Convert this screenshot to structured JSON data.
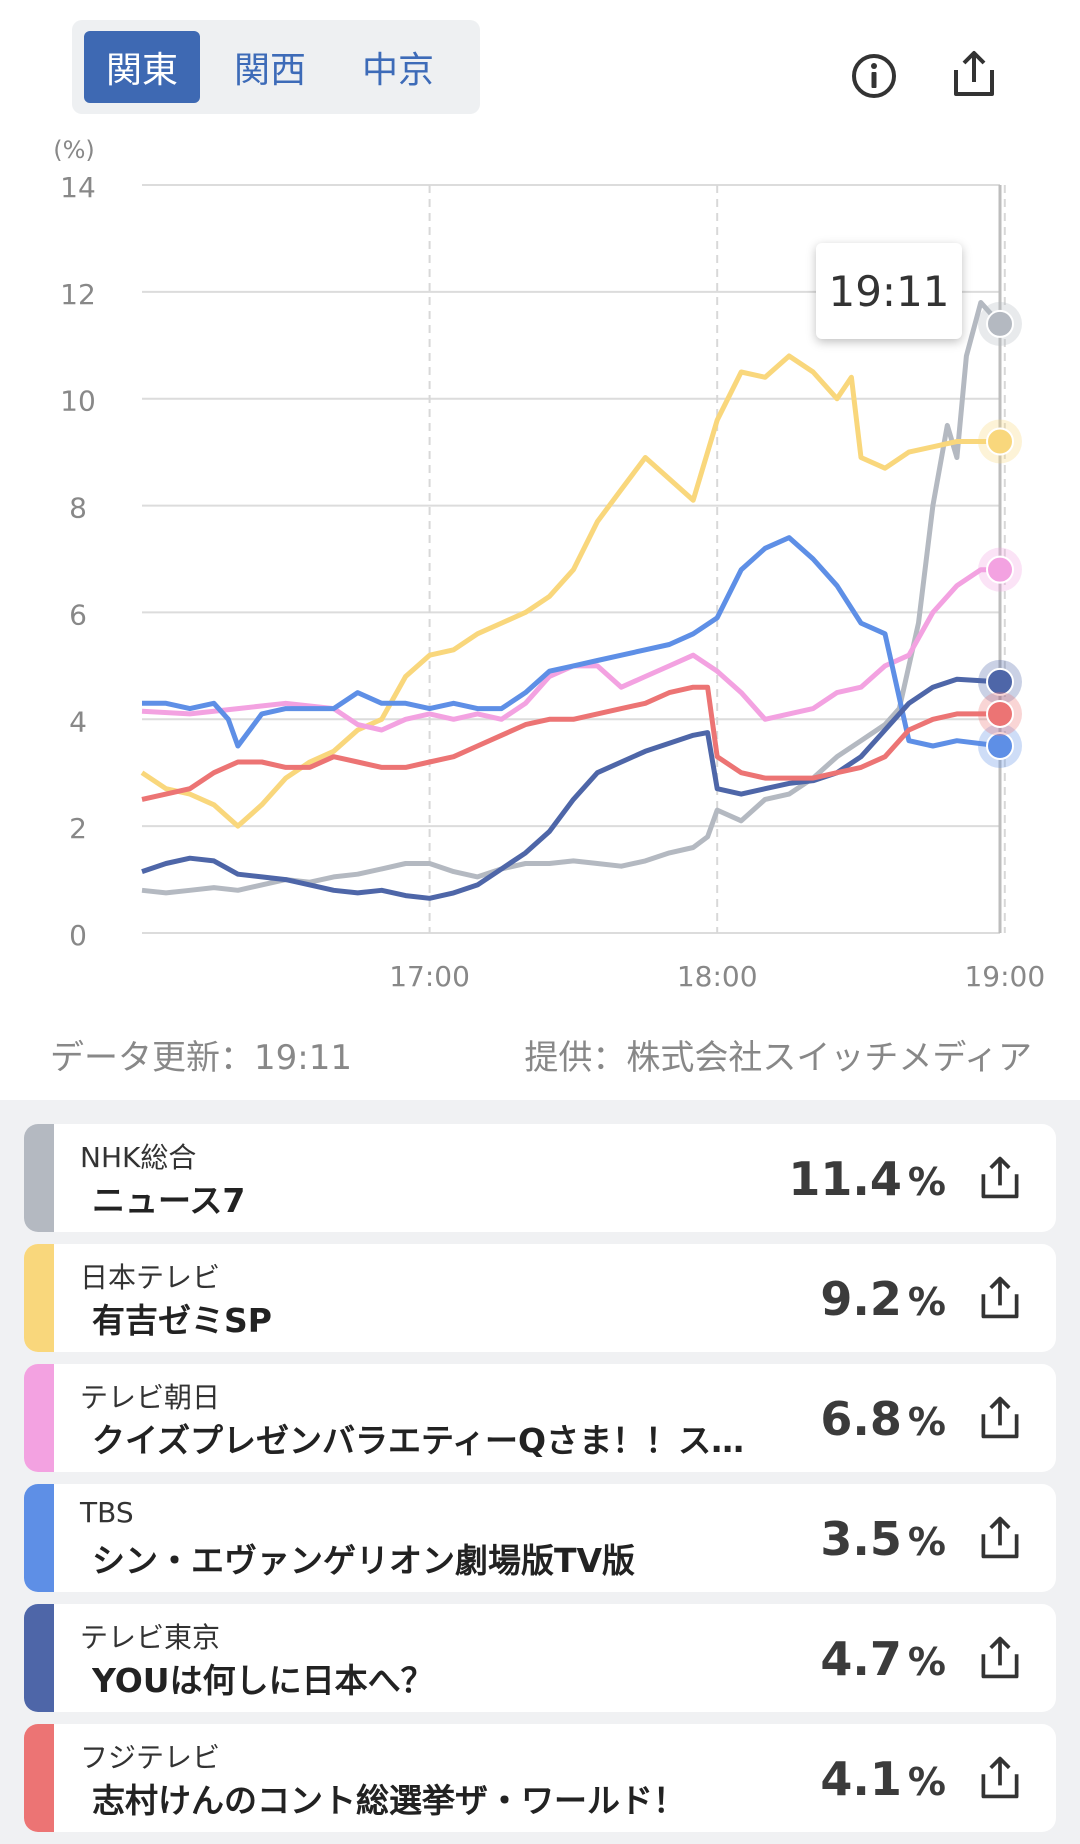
{
  "region_tabs": [
    {
      "label": "関東",
      "active": true
    },
    {
      "label": "関西",
      "active": false
    },
    {
      "label": "中京",
      "active": false
    }
  ],
  "icons": {
    "info": "info-circle-icon",
    "share": "share-upload-icon"
  },
  "tooltip_time": "19:11",
  "chart_data": {
    "type": "line",
    "unit_label": "(%)",
    "y_ticks": [
      "0",
      "2",
      "4",
      "6",
      "8",
      "10",
      "12",
      "14"
    ],
    "x_ticks": [
      "17:00",
      "18:00",
      "19:00"
    ],
    "ylim": [
      0,
      14
    ],
    "xlim_minutes": [
      0,
      179
    ],
    "grid": true,
    "series": [
      {
        "name": "NHK総合",
        "color": "#b4b9c1",
        "points": [
          [
            0,
            0.8
          ],
          [
            5,
            0.75
          ],
          [
            10,
            0.8
          ],
          [
            15,
            0.85
          ],
          [
            20,
            0.8
          ],
          [
            25,
            0.9
          ],
          [
            30,
            1.0
          ],
          [
            35,
            0.95
          ],
          [
            40,
            1.05
          ],
          [
            45,
            1.1
          ],
          [
            50,
            1.2
          ],
          [
            55,
            1.3
          ],
          [
            60,
            1.3
          ],
          [
            65,
            1.15
          ],
          [
            70,
            1.05
          ],
          [
            75,
            1.2
          ],
          [
            80,
            1.3
          ],
          [
            85,
            1.3
          ],
          [
            90,
            1.35
          ],
          [
            95,
            1.3
          ],
          [
            100,
            1.25
          ],
          [
            105,
            1.35
          ],
          [
            110,
            1.5
          ],
          [
            115,
            1.6
          ],
          [
            118,
            1.8
          ],
          [
            120,
            2.3
          ],
          [
            125,
            2.1
          ],
          [
            130,
            2.5
          ],
          [
            135,
            2.6
          ],
          [
            140,
            2.9
          ],
          [
            145,
            3.3
          ],
          [
            150,
            3.6
          ],
          [
            155,
            3.9
          ],
          [
            158,
            4.2
          ],
          [
            162,
            5.8
          ],
          [
            165,
            8.0
          ],
          [
            168,
            9.5
          ],
          [
            170,
            8.9
          ],
          [
            172,
            10.8
          ],
          [
            175,
            11.8
          ],
          [
            179,
            11.4
          ]
        ]
      },
      {
        "name": "日本テレビ",
        "color": "#f9d77c",
        "points": [
          [
            0,
            3.0
          ],
          [
            5,
            2.7
          ],
          [
            10,
            2.6
          ],
          [
            15,
            2.4
          ],
          [
            20,
            2.0
          ],
          [
            25,
            2.4
          ],
          [
            30,
            2.9
          ],
          [
            35,
            3.2
          ],
          [
            40,
            3.4
          ],
          [
            45,
            3.8
          ],
          [
            50,
            4.0
          ],
          [
            55,
            4.8
          ],
          [
            60,
            5.2
          ],
          [
            65,
            5.3
          ],
          [
            70,
            5.6
          ],
          [
            75,
            5.8
          ],
          [
            80,
            6.0
          ],
          [
            85,
            6.3
          ],
          [
            90,
            6.8
          ],
          [
            95,
            7.7
          ],
          [
            100,
            8.3
          ],
          [
            105,
            8.9
          ],
          [
            110,
            8.5
          ],
          [
            115,
            8.1
          ],
          [
            120,
            9.6
          ],
          [
            125,
            10.5
          ],
          [
            130,
            10.4
          ],
          [
            135,
            10.8
          ],
          [
            140,
            10.5
          ],
          [
            145,
            10.0
          ],
          [
            148,
            10.4
          ],
          [
            150,
            8.9
          ],
          [
            155,
            8.7
          ],
          [
            160,
            9.0
          ],
          [
            165,
            9.1
          ],
          [
            170,
            9.2
          ],
          [
            179,
            9.2
          ]
        ]
      },
      {
        "name": "テレビ朝日",
        "color": "#f3a2e1",
        "points": [
          [
            0,
            4.15
          ],
          [
            10,
            4.1
          ],
          [
            20,
            4.2
          ],
          [
            30,
            4.3
          ],
          [
            40,
            4.2
          ],
          [
            45,
            3.9
          ],
          [
            50,
            3.8
          ],
          [
            55,
            4.0
          ],
          [
            60,
            4.1
          ],
          [
            65,
            4.0
          ],
          [
            70,
            4.1
          ],
          [
            75,
            4.0
          ],
          [
            80,
            4.3
          ],
          [
            85,
            4.8
          ],
          [
            90,
            5.0
          ],
          [
            95,
            5.0
          ],
          [
            100,
            4.6
          ],
          [
            105,
            4.8
          ],
          [
            110,
            5.0
          ],
          [
            115,
            5.2
          ],
          [
            120,
            4.9
          ],
          [
            125,
            4.5
          ],
          [
            130,
            4.0
          ],
          [
            135,
            4.1
          ],
          [
            140,
            4.2
          ],
          [
            145,
            4.5
          ],
          [
            150,
            4.6
          ],
          [
            155,
            5.0
          ],
          [
            160,
            5.2
          ],
          [
            165,
            6.0
          ],
          [
            170,
            6.5
          ],
          [
            175,
            6.8
          ],
          [
            179,
            6.8
          ]
        ]
      },
      {
        "name": "TBS",
        "color": "#5e8fe6",
        "points": [
          [
            0,
            4.3
          ],
          [
            5,
            4.3
          ],
          [
            10,
            4.2
          ],
          [
            15,
            4.3
          ],
          [
            18,
            4.0
          ],
          [
            20,
            3.5
          ],
          [
            25,
            4.1
          ],
          [
            30,
            4.2
          ],
          [
            35,
            4.2
          ],
          [
            40,
            4.2
          ],
          [
            45,
            4.5
          ],
          [
            50,
            4.3
          ],
          [
            55,
            4.3
          ],
          [
            60,
            4.2
          ],
          [
            65,
            4.3
          ],
          [
            70,
            4.2
          ],
          [
            75,
            4.2
          ],
          [
            80,
            4.5
          ],
          [
            85,
            4.9
          ],
          [
            90,
            5.0
          ],
          [
            95,
            5.1
          ],
          [
            100,
            5.2
          ],
          [
            105,
            5.3
          ],
          [
            110,
            5.4
          ],
          [
            115,
            5.6
          ],
          [
            120,
            5.9
          ],
          [
            125,
            6.8
          ],
          [
            130,
            7.2
          ],
          [
            135,
            7.4
          ],
          [
            140,
            7.0
          ],
          [
            145,
            6.5
          ],
          [
            150,
            5.8
          ],
          [
            155,
            5.6
          ],
          [
            160,
            3.6
          ],
          [
            165,
            3.5
          ],
          [
            170,
            3.6
          ],
          [
            179,
            3.5
          ]
        ]
      },
      {
        "name": "テレビ東京",
        "color": "#4e66a8",
        "points": [
          [
            0,
            1.15
          ],
          [
            5,
            1.3
          ],
          [
            10,
            1.4
          ],
          [
            15,
            1.35
          ],
          [
            20,
            1.1
          ],
          [
            25,
            1.05
          ],
          [
            30,
            1.0
          ],
          [
            35,
            0.9
          ],
          [
            40,
            0.8
          ],
          [
            45,
            0.75
          ],
          [
            50,
            0.8
          ],
          [
            55,
            0.7
          ],
          [
            60,
            0.65
          ],
          [
            65,
            0.75
          ],
          [
            70,
            0.9
          ],
          [
            75,
            1.2
          ],
          [
            80,
            1.5
          ],
          [
            85,
            1.9
          ],
          [
            90,
            2.5
          ],
          [
            95,
            3.0
          ],
          [
            100,
            3.2
          ],
          [
            105,
            3.4
          ],
          [
            110,
            3.55
          ],
          [
            115,
            3.7
          ],
          [
            118,
            3.75
          ],
          [
            120,
            2.7
          ],
          [
            125,
            2.6
          ],
          [
            130,
            2.7
          ],
          [
            135,
            2.8
          ],
          [
            140,
            2.85
          ],
          [
            145,
            3.0
          ],
          [
            150,
            3.3
          ],
          [
            155,
            3.8
          ],
          [
            160,
            4.3
          ],
          [
            165,
            4.6
          ],
          [
            170,
            4.75
          ],
          [
            179,
            4.7
          ]
        ]
      },
      {
        "name": "フジテレビ",
        "color": "#ec7474",
        "points": [
          [
            0,
            2.5
          ],
          [
            5,
            2.6
          ],
          [
            10,
            2.7
          ],
          [
            15,
            3.0
          ],
          [
            20,
            3.2
          ],
          [
            25,
            3.2
          ],
          [
            30,
            3.1
          ],
          [
            35,
            3.1
          ],
          [
            40,
            3.3
          ],
          [
            45,
            3.2
          ],
          [
            50,
            3.1
          ],
          [
            55,
            3.1
          ],
          [
            60,
            3.2
          ],
          [
            65,
            3.3
          ],
          [
            70,
            3.5
          ],
          [
            75,
            3.7
          ],
          [
            80,
            3.9
          ],
          [
            85,
            4.0
          ],
          [
            90,
            4.0
          ],
          [
            95,
            4.1
          ],
          [
            100,
            4.2
          ],
          [
            105,
            4.3
          ],
          [
            110,
            4.5
          ],
          [
            115,
            4.6
          ],
          [
            118,
            4.6
          ],
          [
            120,
            3.3
          ],
          [
            125,
            3.0
          ],
          [
            130,
            2.9
          ],
          [
            135,
            2.9
          ],
          [
            140,
            2.9
          ],
          [
            145,
            3.0
          ],
          [
            150,
            3.1
          ],
          [
            155,
            3.3
          ],
          [
            160,
            3.8
          ],
          [
            165,
            4.0
          ],
          [
            170,
            4.1
          ],
          [
            179,
            4.1
          ]
        ]
      }
    ]
  },
  "footer": {
    "update": "データ更新：19:11",
    "provider": "提供：株式会社スイッチメディア"
  },
  "programs": [
    {
      "channel": "NHK総合",
      "title": "ニュース7",
      "rating": "11.4",
      "unit": "%",
      "color": "#b4b9c1"
    },
    {
      "channel": "日本テレビ",
      "title": "有吉ゼミSP",
      "rating": "9.2",
      "unit": "%",
      "color": "#f9d77c"
    },
    {
      "channel": "テレビ朝日",
      "title": "クイズプレゼンバラエティーQさま！！ス…",
      "rating": "6.8",
      "unit": "%",
      "color": "#f3a2e1"
    },
    {
      "channel": "TBS",
      "title": "シン・エヴァンゲリオン劇場版TV版",
      "rating": "3.5",
      "unit": "%",
      "color": "#5e8fe6"
    },
    {
      "channel": "テレビ東京",
      "title": "YOUは何しに日本へ？",
      "rating": "4.7",
      "unit": "%",
      "color": "#4e66a8"
    },
    {
      "channel": "フジテレビ",
      "title": "志村けんのコント総選挙ザ・ワールド！",
      "rating": "4.1",
      "unit": "%",
      "color": "#ec7474"
    }
  ]
}
